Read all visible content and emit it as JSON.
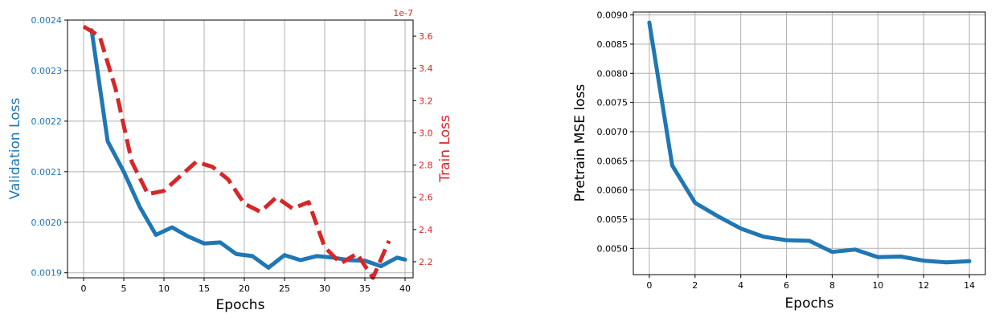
{
  "chart_data": [
    {
      "type": "line",
      "xlabel": "Epochs",
      "ylabel": "Validation Loss",
      "y2label": "Train Loss",
      "y2_offset_label": "1e-7",
      "grid": true,
      "xlim": [
        -2,
        41
      ],
      "ylim": [
        0.00189,
        0.0024
      ],
      "y2lim": [
        2.1,
        3.7
      ],
      "xticks": [
        0,
        5,
        10,
        15,
        20,
        25,
        30,
        35,
        40
      ],
      "yticks": [
        "0.0019",
        "0.0020",
        "0.0021",
        "0.0022",
        "0.0023",
        "0.0024"
      ],
      "y2ticks": [
        "2.2",
        "2.4",
        "2.6",
        "2.8",
        "3.0",
        "3.2",
        "3.4",
        "3.6"
      ],
      "colors": {
        "left": "#1f77b4",
        "right": "#d62728"
      },
      "series": [
        {
          "axis": "left",
          "style": "solid",
          "color": "#1f77b4",
          "x": [
            1,
            3,
            5,
            7,
            9,
            11,
            13,
            15,
            17,
            19,
            21,
            23,
            25,
            27,
            29,
            31,
            33,
            35,
            37,
            39,
            40
          ],
          "y": [
            0.00238,
            0.00216,
            0.0021,
            0.00203,
            0.001975,
            0.00199,
            0.001972,
            0.001958,
            0.00196,
            0.001937,
            0.001933,
            0.00191,
            0.001935,
            0.001925,
            0.001933,
            0.00193,
            0.001925,
            0.001924,
            0.001913,
            0.00193,
            0.001926
          ]
        },
        {
          "axis": "right",
          "style": "dashed",
          "color": "#d62728",
          "x": [
            0,
            2,
            4,
            6,
            8,
            10,
            12,
            14,
            16,
            18,
            20,
            22,
            24,
            26,
            28,
            30,
            32,
            34,
            36,
            38
          ],
          "y": [
            3.66,
            3.6,
            3.27,
            2.82,
            2.62,
            2.64,
            2.73,
            2.82,
            2.79,
            2.71,
            2.56,
            2.51,
            2.6,
            2.53,
            2.57,
            2.29,
            2.19,
            2.25,
            2.1,
            2.33
          ]
        }
      ]
    },
    {
      "type": "line",
      "xlabel": "Epochs",
      "ylabel": "Pretrain MSE loss",
      "grid": true,
      "xlim": [
        -0.7,
        14.7
      ],
      "ylim": [
        0.00455,
        0.00905
      ],
      "xticks": [
        0,
        2,
        4,
        6,
        8,
        10,
        12,
        14
      ],
      "yticks": [
        "0.0050",
        "0.0055",
        "0.0060",
        "0.0065",
        "0.0070",
        "0.0075",
        "0.0080",
        "0.0085",
        "0.0090"
      ],
      "colors": {
        "line": "#1f77b4"
      },
      "series": [
        {
          "style": "solid",
          "color": "#1f77b4",
          "x": [
            0,
            1,
            2,
            3,
            4,
            5,
            6,
            7,
            8,
            9,
            10,
            11,
            12,
            13,
            14
          ],
          "y": [
            0.00887,
            0.00642,
            0.00578,
            0.00555,
            0.00534,
            0.0052,
            0.00514,
            0.00513,
            0.00494,
            0.00498,
            0.00485,
            0.00486,
            0.00479,
            0.00476,
            0.00478
          ]
        }
      ]
    }
  ]
}
